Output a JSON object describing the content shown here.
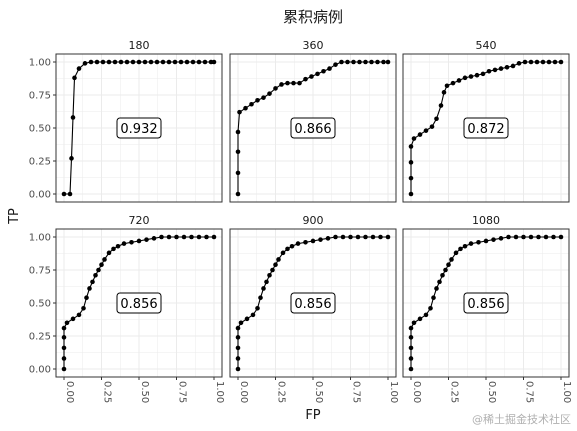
{
  "chart_data": {
    "type": "line",
    "title": "累积病例",
    "xlabel": "FP",
    "ylabel": "TP",
    "xlim": [
      0,
      1
    ],
    "ylim": [
      0,
      1
    ],
    "x_ticks": [
      "0.00",
      "0.25",
      "0.50",
      "0.75",
      "1.00"
    ],
    "y_ticks": [
      "0.00",
      "0.25",
      "0.50",
      "0.75",
      "1.00"
    ],
    "grid": true,
    "panels": [
      {
        "label": "180",
        "auc": "0.932",
        "x": [
          0,
          0.04,
          0.05,
          0.06,
          0.07,
          0.1,
          0.14,
          0.18,
          0.22,
          0.26,
          0.3,
          0.34,
          0.38,
          0.42,
          0.46,
          0.5,
          0.54,
          0.58,
          0.62,
          0.66,
          0.7,
          0.74,
          0.78,
          0.82,
          0.86,
          0.9,
          0.94,
          0.98,
          1.0
        ],
        "y": [
          0,
          0,
          0.27,
          0.58,
          0.88,
          0.95,
          0.99,
          1,
          1,
          1,
          1,
          1,
          1,
          1,
          1,
          1,
          1,
          1,
          1,
          1,
          1,
          1,
          1,
          1,
          1,
          1,
          1,
          1,
          1
        ]
      },
      {
        "label": "360",
        "auc": "0.866",
        "x": [
          0,
          0,
          0,
          0,
          0.01,
          0.05,
          0.09,
          0.13,
          0.17,
          0.21,
          0.25,
          0.29,
          0.33,
          0.37,
          0.41,
          0.45,
          0.49,
          0.53,
          0.57,
          0.61,
          0.65,
          0.69,
          0.73,
          0.77,
          0.81,
          0.85,
          0.89,
          0.93,
          0.97,
          1.0
        ],
        "y": [
          0,
          0.16,
          0.32,
          0.47,
          0.62,
          0.65,
          0.68,
          0.71,
          0.73,
          0.76,
          0.8,
          0.83,
          0.84,
          0.84,
          0.84,
          0.87,
          0.89,
          0.91,
          0.93,
          0.95,
          0.98,
          1,
          1,
          1,
          1,
          1,
          1,
          1,
          1,
          1
        ]
      },
      {
        "label": "540",
        "auc": "0.872",
        "x": [
          0,
          0,
          0,
          0,
          0.02,
          0.06,
          0.1,
          0.14,
          0.17,
          0.2,
          0.22,
          0.24,
          0.28,
          0.32,
          0.36,
          0.4,
          0.44,
          0.48,
          0.52,
          0.56,
          0.6,
          0.64,
          0.68,
          0.72,
          0.76,
          0.8,
          0.84,
          0.88,
          0.92,
          0.96,
          1.0
        ],
        "y": [
          0,
          0.12,
          0.24,
          0.36,
          0.42,
          0.45,
          0.48,
          0.51,
          0.57,
          0.67,
          0.77,
          0.82,
          0.84,
          0.86,
          0.88,
          0.89,
          0.9,
          0.91,
          0.93,
          0.94,
          0.95,
          0.96,
          0.97,
          0.99,
          1,
          1,
          1,
          1,
          1,
          1,
          1
        ]
      },
      {
        "label": "720",
        "auc": "0.856",
        "x": [
          0,
          0,
          0,
          0,
          0,
          0.02,
          0.06,
          0.1,
          0.13,
          0.15,
          0.17,
          0.19,
          0.21,
          0.23,
          0.25,
          0.27,
          0.3,
          0.33,
          0.36,
          0.4,
          0.45,
          0.5,
          0.55,
          0.6,
          0.65,
          0.7,
          0.75,
          0.8,
          0.85,
          0.9,
          0.95,
          1.0
        ],
        "y": [
          0,
          0.08,
          0.16,
          0.24,
          0.31,
          0.35,
          0.38,
          0.41,
          0.46,
          0.54,
          0.61,
          0.66,
          0.71,
          0.75,
          0.79,
          0.83,
          0.88,
          0.91,
          0.93,
          0.95,
          0.96,
          0.97,
          0.98,
          0.99,
          1,
          1,
          1,
          1,
          1,
          1,
          1,
          1
        ]
      },
      {
        "label": "900",
        "auc": "0.856",
        "x": [
          0,
          0,
          0,
          0,
          0,
          0.02,
          0.06,
          0.1,
          0.13,
          0.15,
          0.17,
          0.19,
          0.21,
          0.23,
          0.25,
          0.27,
          0.3,
          0.33,
          0.36,
          0.4,
          0.45,
          0.5,
          0.55,
          0.6,
          0.65,
          0.7,
          0.75,
          0.8,
          0.85,
          0.9,
          0.95,
          1.0
        ],
        "y": [
          0,
          0.08,
          0.16,
          0.24,
          0.31,
          0.35,
          0.38,
          0.41,
          0.46,
          0.54,
          0.61,
          0.66,
          0.71,
          0.75,
          0.79,
          0.83,
          0.88,
          0.91,
          0.93,
          0.95,
          0.96,
          0.97,
          0.98,
          0.99,
          1,
          1,
          1,
          1,
          1,
          1,
          1,
          1
        ]
      },
      {
        "label": "1080",
        "auc": "0.856",
        "x": [
          0,
          0,
          0,
          0,
          0,
          0.02,
          0.06,
          0.1,
          0.13,
          0.15,
          0.17,
          0.19,
          0.21,
          0.23,
          0.25,
          0.27,
          0.3,
          0.33,
          0.36,
          0.4,
          0.45,
          0.5,
          0.55,
          0.6,
          0.65,
          0.7,
          0.75,
          0.8,
          0.85,
          0.9,
          0.95,
          1.0
        ],
        "y": [
          0,
          0.08,
          0.16,
          0.24,
          0.31,
          0.35,
          0.38,
          0.41,
          0.46,
          0.54,
          0.61,
          0.66,
          0.71,
          0.75,
          0.79,
          0.83,
          0.88,
          0.91,
          0.93,
          0.95,
          0.96,
          0.97,
          0.98,
          0.99,
          1,
          1,
          1,
          1,
          1,
          1,
          1,
          1
        ]
      }
    ]
  },
  "watermark": "@稀土掘金技术社区",
  "colors": {
    "panel_border": "#333333",
    "grid": "#ebebeb",
    "line": "#000000",
    "point": "#000000"
  }
}
